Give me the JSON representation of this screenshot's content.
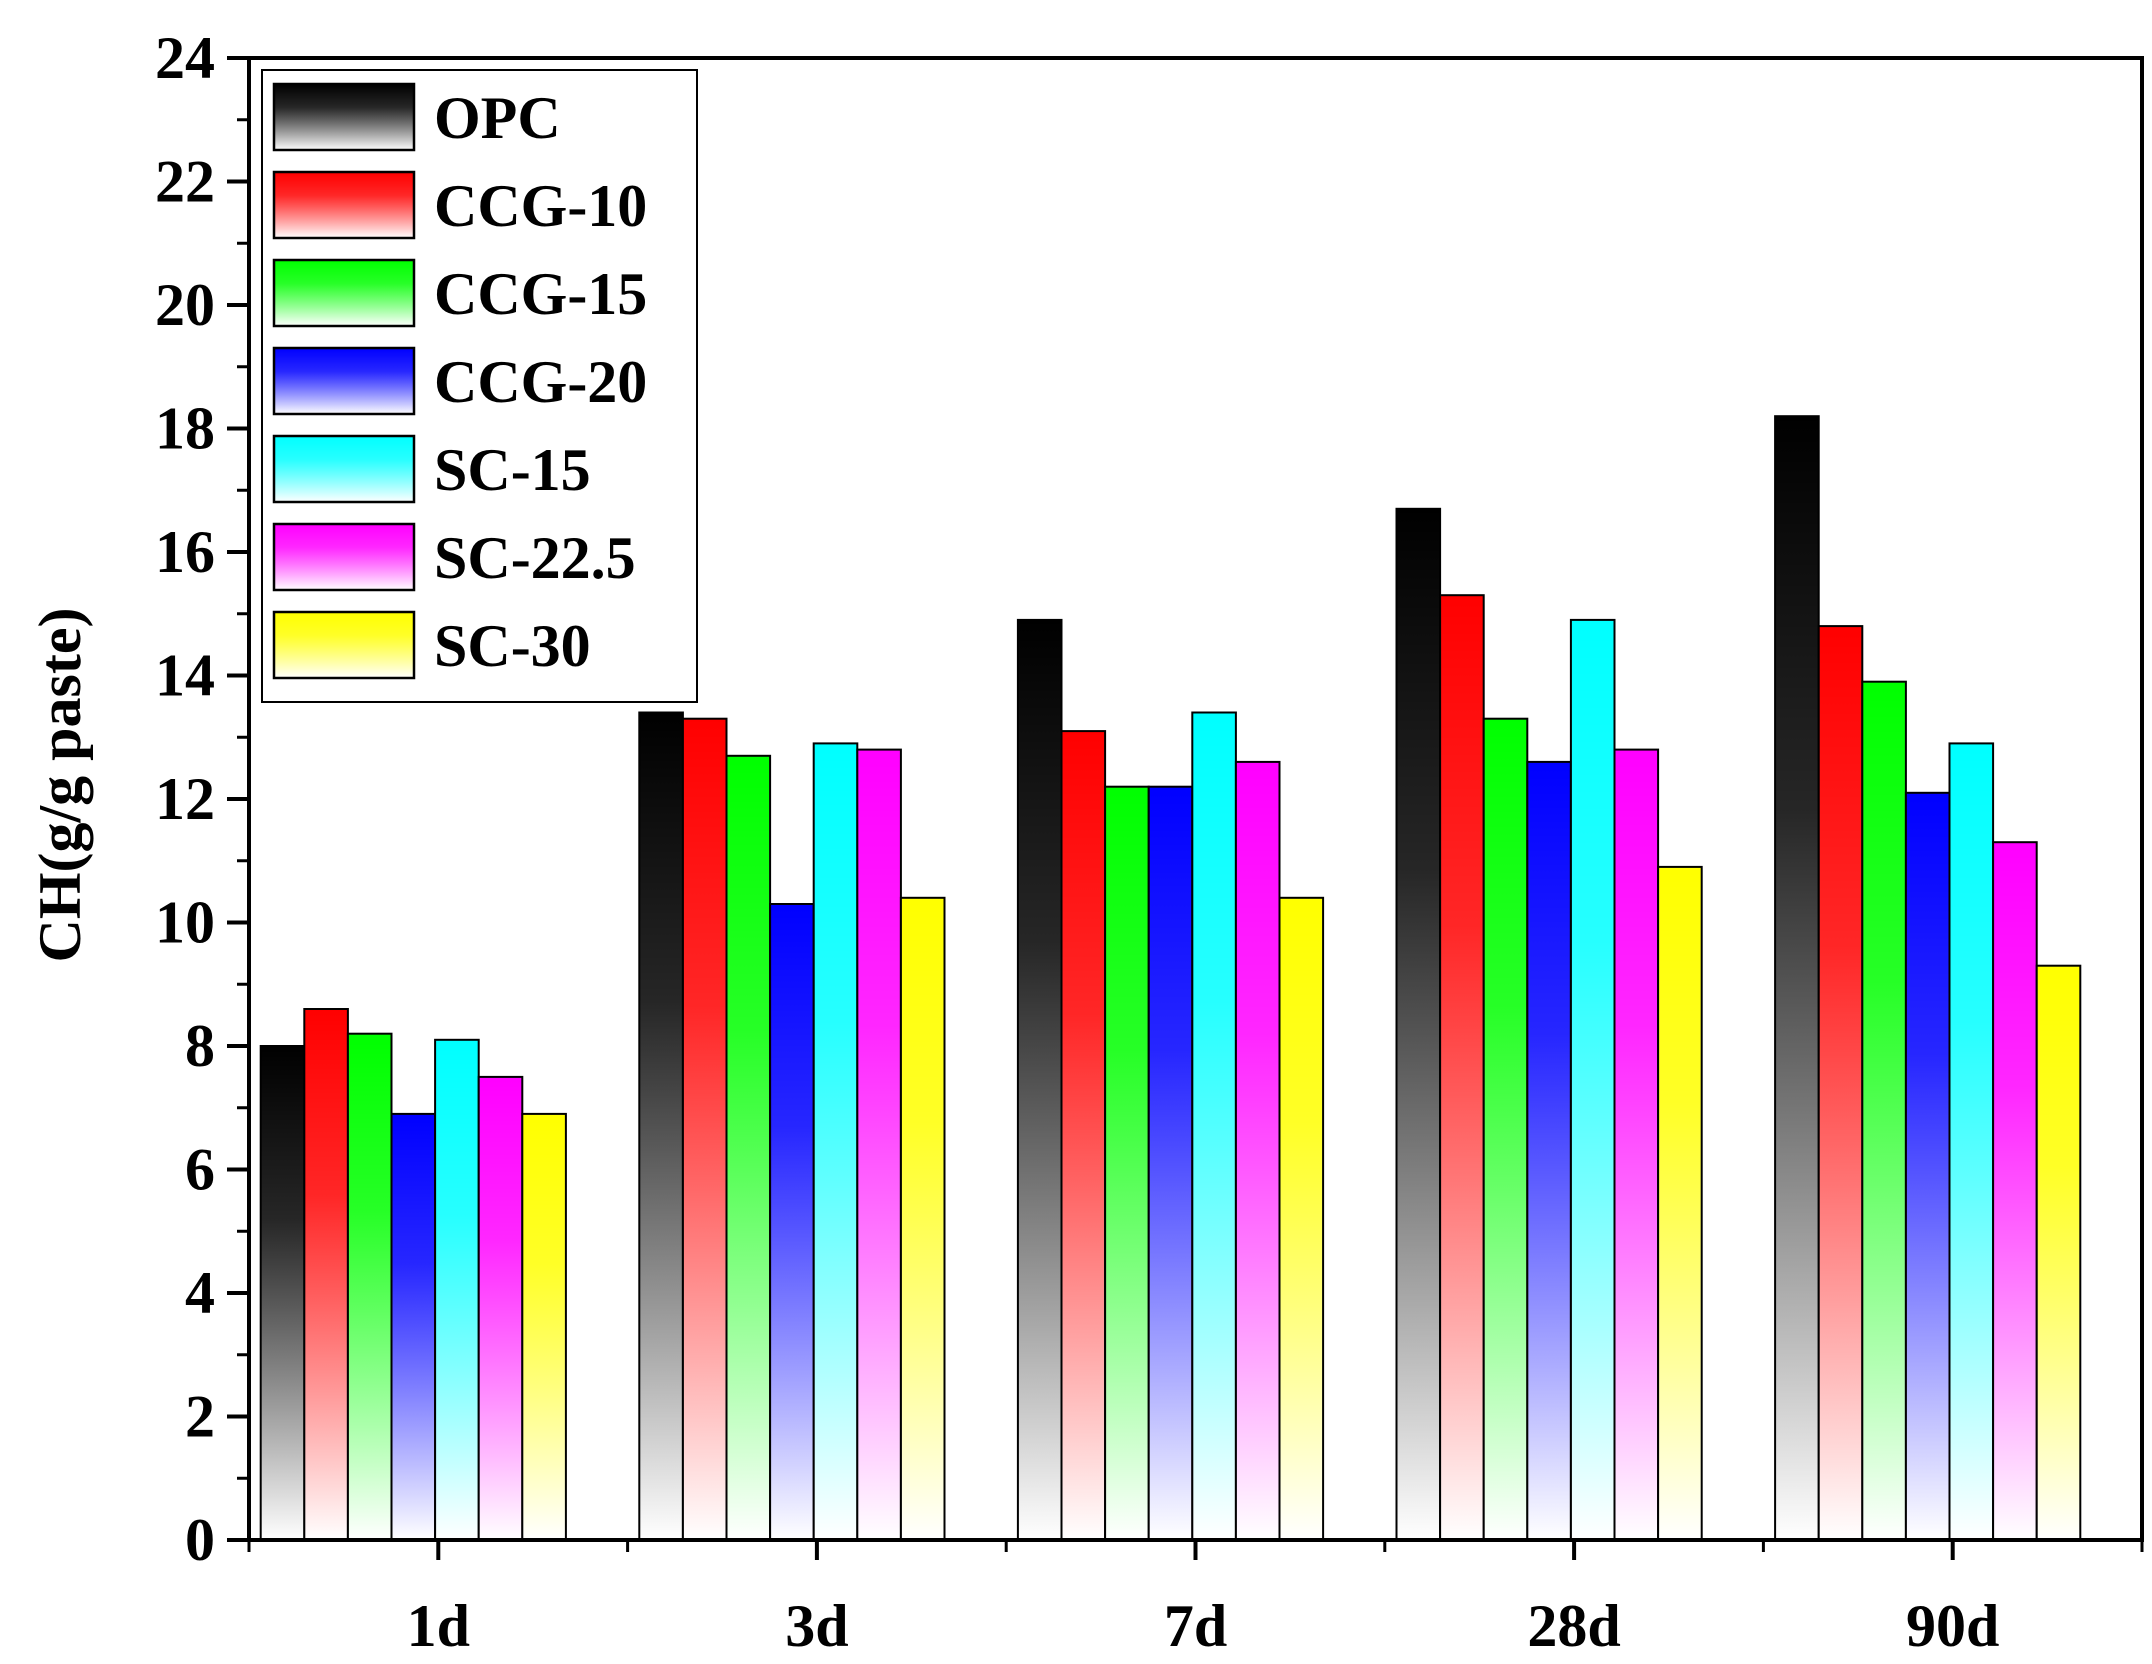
{
  "chart_data": {
    "type": "bar",
    "title": "",
    "xlabel": "",
    "ylabel": "CH(g/g paste)",
    "ylim": [
      0,
      24
    ],
    "yticks": [
      0,
      2,
      4,
      6,
      8,
      10,
      12,
      14,
      16,
      18,
      20,
      22,
      24
    ],
    "categories": [
      "1d",
      "3d",
      "7d",
      "28d",
      "90d"
    ],
    "legend_position": "top-left",
    "series": [
      {
        "name": "OPC",
        "color": "#000000",
        "values": [
          8.0,
          13.4,
          14.9,
          16.7,
          18.2
        ]
      },
      {
        "name": "CCG-10",
        "color": "#ff0000",
        "values": [
          8.6,
          13.3,
          13.1,
          15.3,
          14.8
        ]
      },
      {
        "name": "CCG-15",
        "color": "#00ff00",
        "values": [
          8.2,
          12.7,
          12.2,
          13.3,
          13.9
        ]
      },
      {
        "name": "CCG-20",
        "color": "#0000ff",
        "values": [
          6.9,
          10.3,
          12.2,
          12.6,
          12.1
        ]
      },
      {
        "name": "SC-15",
        "color": "#00ffff",
        "values": [
          8.1,
          12.9,
          13.4,
          14.9,
          12.9
        ]
      },
      {
        "name": "SC-22.5",
        "color": "#ff00ff",
        "values": [
          7.5,
          12.8,
          12.6,
          12.8,
          11.3
        ]
      },
      {
        "name": "SC-30",
        "color": "#ffff00",
        "values": [
          6.9,
          10.4,
          10.4,
          10.9,
          9.3
        ]
      }
    ]
  }
}
